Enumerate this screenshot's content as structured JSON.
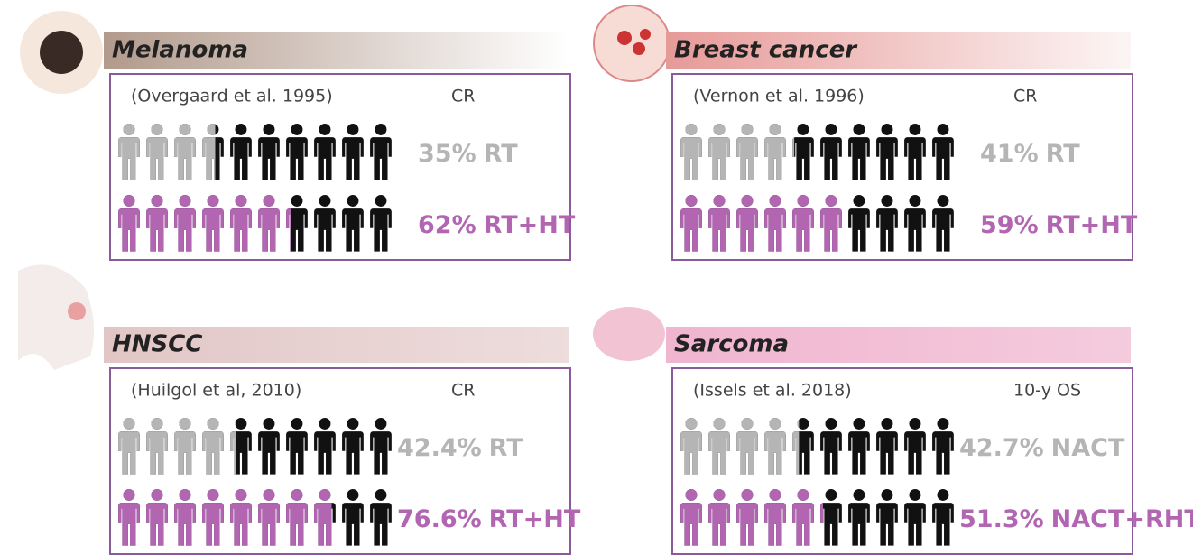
{
  "chart_data": [
    {
      "type": "pictogram",
      "title": "Melanoma",
      "source": "(Overgaard et al. 1995)",
      "metric": "CR",
      "base_color": "#111111",
      "series": [
        {
          "name": "RT",
          "color": "#b5b5b5",
          "values": [
            35
          ],
          "value_labels": [
            "35%"
          ]
        },
        {
          "name": "RT+HT",
          "color": "#b266b2",
          "values": [
            62
          ],
          "value_labels": [
            "62%"
          ]
        }
      ]
    },
    {
      "type": "pictogram",
      "title": "Breast cancer",
      "source": "(Vernon et al. 1996)",
      "metric": "CR",
      "base_color": "#111111",
      "series": [
        {
          "name": "RT",
          "color": "#b5b5b5",
          "values": [
            41
          ],
          "value_labels": [
            "41%"
          ]
        },
        {
          "name": "RT+HT",
          "color": "#b266b2",
          "values": [
            59
          ],
          "value_labels": [
            "59%"
          ]
        }
      ]
    },
    {
      "type": "pictogram",
      "title": "HNSCC",
      "source": "(Huilgol et al, 2010)",
      "metric": "CR",
      "base_color": "#111111",
      "series": [
        {
          "name": "RT",
          "color": "#b5b5b5",
          "values": [
            42.4
          ],
          "value_labels": [
            "42.4%"
          ]
        },
        {
          "name": "RT+HT",
          "color": "#b266b2",
          "values": [
            76.6
          ],
          "value_labels": [
            "76.6%"
          ]
        }
      ]
    },
    {
      "type": "pictogram",
      "title": "Sarcoma",
      "source": "(Issels et al. 2018)",
      "metric": "10-y OS",
      "base_color": "#111111",
      "series": [
        {
          "name": "NACT",
          "color": "#b5b5b5",
          "values": [
            42.7
          ],
          "value_labels": [
            "42.7%"
          ]
        },
        {
          "name": "NACT+RHT",
          "color": "#b266b2",
          "values": [
            51.3
          ],
          "value_labels": [
            "51.3%"
          ]
        }
      ]
    }
  ]
}
